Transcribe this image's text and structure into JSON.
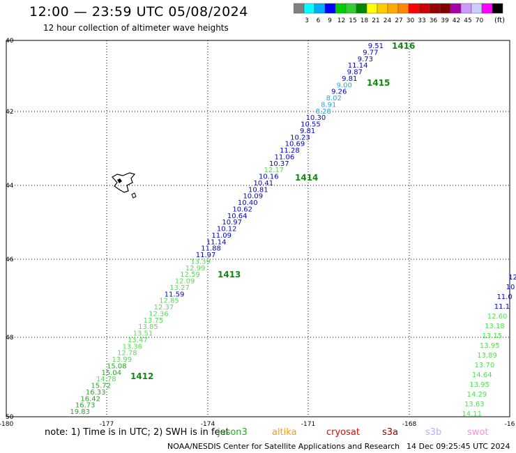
{
  "title": "12:00 — 23:59 UTC 05/08/2024",
  "subtitle": "12 hour collection of altimeter wave heights",
  "legend": {
    "unit": "(ft)",
    "colors": [
      "#808080",
      "#00ffff",
      "#00aaff",
      "#0000ff",
      "#00cc00",
      "#33cc33",
      "#008800",
      "#ffff00",
      "#ffcc00",
      "#ffaa00",
      "#ff8800",
      "#ff0000",
      "#cc0000",
      "#990000",
      "#800000",
      "#aa00aa",
      "#cc99ff",
      "#ccccff",
      "#ff00ff",
      "#000000"
    ],
    "ticks": [
      "3",
      "6",
      "9",
      "12",
      "15",
      "18",
      "21",
      "24",
      "27",
      "30",
      "33",
      "36",
      "39",
      "42",
      "45",
      "70"
    ]
  },
  "axes": {
    "lon_ticks": [
      "-180",
      "-177",
      "-174",
      "-171",
      "-168",
      "-16"
    ],
    "lat_ticks": [
      "40",
      "42",
      "44",
      "46",
      "48",
      "50"
    ]
  },
  "track_colors": {
    "blue": "#0000cc",
    "cyan": "#22aadd",
    "lightgreen": "#55dd55",
    "green": "#22aa22"
  },
  "tracks": [
    {
      "id": "main",
      "time_labels": [
        "1416",
        "1415",
        "1414",
        "1413",
        "1412"
      ],
      "points": [
        {
          "v": "9.51",
          "c": "blue"
        },
        {
          "v": "9.77",
          "c": "blue"
        },
        {
          "v": "9.73",
          "c": "blue"
        },
        {
          "v": "11.14",
          "c": "blue"
        },
        {
          "v": "9.87",
          "c": "blue"
        },
        {
          "v": "9.81",
          "c": "blue"
        },
        {
          "v": "9.00",
          "c": "cyan"
        },
        {
          "v": "9.26",
          "c": "blue"
        },
        {
          "v": "8.02",
          "c": "cyan"
        },
        {
          "v": "8.91",
          "c": "cyan"
        },
        {
          "v": "8.28",
          "c": "cyan"
        },
        {
          "v": "10.30",
          "c": "blue"
        },
        {
          "v": "10.55",
          "c": "blue"
        },
        {
          "v": "9.81",
          "c": "blue"
        },
        {
          "v": "10.23",
          "c": "blue"
        },
        {
          "v": "10.69",
          "c": "blue"
        },
        {
          "v": "11.28",
          "c": "blue"
        },
        {
          "v": "11.06",
          "c": "blue"
        },
        {
          "v": "10.37",
          "c": "blue"
        },
        {
          "v": "12.17",
          "c": "lightgreen"
        },
        {
          "v": "10.16",
          "c": "blue"
        },
        {
          "v": "10.41",
          "c": "blue"
        },
        {
          "v": "10.81",
          "c": "blue"
        },
        {
          "v": "10.09",
          "c": "blue"
        },
        {
          "v": "10.40",
          "c": "blue"
        },
        {
          "v": "10.62",
          "c": "blue"
        },
        {
          "v": "10.64",
          "c": "blue"
        },
        {
          "v": "10.97",
          "c": "blue"
        },
        {
          "v": "10.12",
          "c": "blue"
        },
        {
          "v": "11.09",
          "c": "blue"
        },
        {
          "v": "11.14",
          "c": "blue"
        },
        {
          "v": "11.88",
          "c": "blue"
        },
        {
          "v": "11.97",
          "c": "blue"
        },
        {
          "v": "13.39",
          "c": "lightgreen"
        },
        {
          "v": "12.99",
          "c": "lightgreen"
        },
        {
          "v": "12.59",
          "c": "lightgreen"
        },
        {
          "v": "12.09",
          "c": "lightgreen"
        },
        {
          "v": "13.27",
          "c": "lightgreen"
        },
        {
          "v": "11.59",
          "c": "blue"
        },
        {
          "v": "12.85",
          "c": "lightgreen"
        },
        {
          "v": "12.37",
          "c": "lightgreen"
        },
        {
          "v": "12.36",
          "c": "lightgreen"
        },
        {
          "v": "13.75",
          "c": "lightgreen"
        },
        {
          "v": "13.85",
          "c": "lightgreen"
        },
        {
          "v": "13.51",
          "c": "lightgreen"
        },
        {
          "v": "13.47",
          "c": "lightgreen"
        },
        {
          "v": "13.36",
          "c": "lightgreen"
        },
        {
          "v": "12.78",
          "c": "lightgreen"
        },
        {
          "v": "13.99",
          "c": "lightgreen"
        },
        {
          "v": "15.08",
          "c": "green"
        },
        {
          "v": "15.04",
          "c": "green"
        },
        {
          "v": "14.78",
          "c": "lightgreen"
        },
        {
          "v": "15.72",
          "c": "green"
        },
        {
          "v": "16.33",
          "c": "green"
        },
        {
          "v": "16.42",
          "c": "green"
        },
        {
          "v": "16.73",
          "c": "green"
        },
        {
          "v": "19.83",
          "c": "green"
        }
      ]
    },
    {
      "id": "edge",
      "points": [
        {
          "v": "12",
          "c": "blue"
        },
        {
          "v": "10",
          "c": "blue"
        },
        {
          "v": "11.0",
          "c": "blue"
        },
        {
          "v": "11.1",
          "c": "blue"
        },
        {
          "v": "12.60",
          "c": "lightgreen"
        },
        {
          "v": "13.18",
          "c": "lightgreen"
        },
        {
          "v": "13.15",
          "c": "lightgreen"
        },
        {
          "v": "13.95",
          "c": "lightgreen"
        },
        {
          "v": "13.89",
          "c": "lightgreen"
        },
        {
          "v": "13.70",
          "c": "lightgreen"
        },
        {
          "v": "14.64",
          "c": "lightgreen"
        },
        {
          "v": "13.95",
          "c": "lightgreen"
        },
        {
          "v": "14.29",
          "c": "lightgreen"
        },
        {
          "v": "13.63",
          "c": "lightgreen"
        },
        {
          "v": "14.11",
          "c": "lightgreen"
        }
      ]
    }
  ],
  "note": {
    "prefix": "note:  1) Time is in UTC; 2) SWH is in feet",
    "overlay": "jason3",
    "satellites": [
      {
        "name": "altika",
        "color": "#ff9900"
      },
      {
        "name": "cryosat",
        "color": "#ee0000"
      },
      {
        "name": "s3a",
        "color": "#990000"
      },
      {
        "name": "s3b",
        "color": "#bbaaff"
      },
      {
        "name": "swot",
        "color": "#ff88dd"
      }
    ]
  },
  "footer": {
    "credit": "NOAA/NESDIS Center for Satellite Applications and Research",
    "timestamp": "14 Dec 09:25:45 UTC 2024"
  }
}
